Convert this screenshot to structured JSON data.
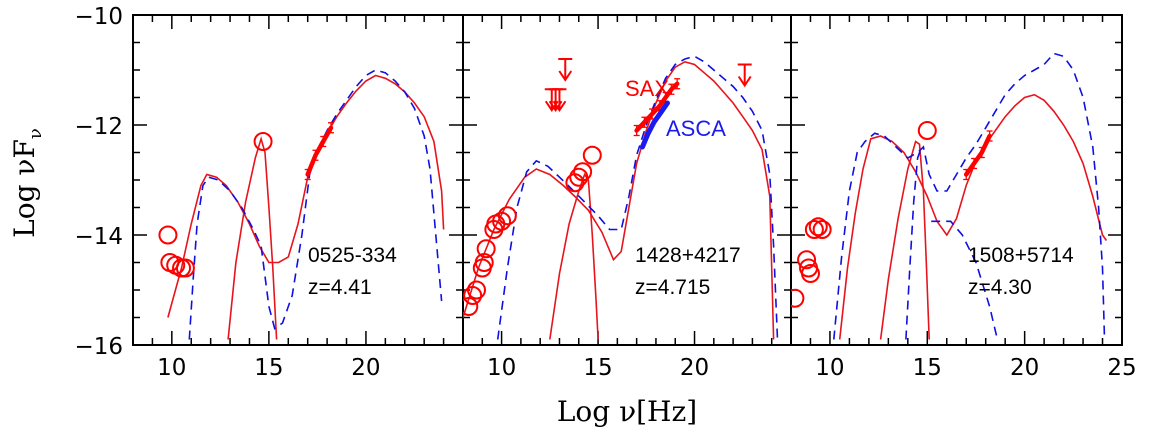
{
  "chart_data": {
    "type": "line",
    "xlabel": "Log ν[Hz]",
    "ylabel": "Log νF",
    "ylabel_sub": "ν",
    "ylim": [
      -16,
      -10
    ],
    "yticks": [
      "−10",
      "−12",
      "−14",
      "−16"
    ],
    "grid": false,
    "colors": {
      "model": "#e8141c",
      "data": "#ff0000",
      "dashed_model": "#1010e0",
      "asca": "#1b1bf0"
    },
    "panels": [
      {
        "xlim": [
          8,
          25
        ],
        "xticks": [
          "10",
          "15",
          "20"
        ],
        "name": "0525-334",
        "redshift": "z=4.41",
        "points": [
          [
            9.8,
            -14.0
          ],
          [
            9.9,
            -14.5
          ],
          [
            10.2,
            -14.55
          ],
          [
            10.5,
            -14.6
          ],
          [
            10.7,
            -14.6
          ],
          [
            14.7,
            -12.3
          ]
        ],
        "xray_red": [
          [
            17.0,
            -12.9
          ],
          [
            17.4,
            -12.55
          ],
          [
            17.8,
            -12.3
          ],
          [
            18.2,
            -12.05
          ]
        ],
        "model_solid": [
          [
            9.8,
            -15.5
          ],
          [
            10.5,
            -14.6
          ],
          [
            11.0,
            -13.8
          ],
          [
            11.5,
            -13.1
          ],
          [
            11.8,
            -12.9
          ],
          [
            12.3,
            -12.95
          ],
          [
            12.8,
            -13.1
          ],
          [
            13.4,
            -13.4
          ],
          [
            14.0,
            -13.8
          ],
          [
            14.5,
            -14.2
          ],
          [
            15.0,
            -14.5
          ],
          [
            15.5,
            -14.5
          ],
          [
            16.0,
            -14.4
          ],
          [
            16.5,
            -13.8
          ],
          [
            17.0,
            -12.95
          ],
          [
            17.5,
            -12.5
          ],
          [
            18.0,
            -12.15
          ],
          [
            18.5,
            -11.85
          ],
          [
            19.0,
            -11.6
          ],
          [
            19.5,
            -11.38
          ],
          [
            20.0,
            -11.2
          ],
          [
            20.5,
            -11.1
          ],
          [
            21.0,
            -11.15
          ],
          [
            21.5,
            -11.25
          ],
          [
            22.0,
            -11.4
          ],
          [
            22.5,
            -11.6
          ],
          [
            23.0,
            -11.85
          ],
          [
            23.5,
            -12.3
          ],
          [
            23.9,
            -13.2
          ],
          [
            24.0,
            -13.9
          ]
        ],
        "model_solid_sync": [
          [
            12.9,
            -15.9
          ],
          [
            13.3,
            -14.5
          ],
          [
            13.8,
            -13.4
          ],
          [
            14.3,
            -12.6
          ],
          [
            14.6,
            -12.25
          ],
          [
            14.8,
            -12.5
          ],
          [
            15.0,
            -13.5
          ],
          [
            15.2,
            -14.6
          ],
          [
            15.4,
            -15.9
          ]
        ],
        "model_dashed": [
          [
            10.9,
            -15.9
          ],
          [
            11.1,
            -14.8
          ],
          [
            11.3,
            -13.8
          ],
          [
            11.6,
            -13.1
          ],
          [
            11.9,
            -12.95
          ],
          [
            12.4,
            -13.0
          ],
          [
            13.0,
            -13.2
          ],
          [
            13.6,
            -13.5
          ],
          [
            14.2,
            -13.9
          ],
          [
            14.6,
            -14.2
          ],
          [
            15.0,
            -15.3
          ],
          [
            15.3,
            -15.7
          ],
          [
            15.7,
            -15.6
          ],
          [
            16.2,
            -15.1
          ],
          [
            16.7,
            -14.0
          ],
          [
            17.1,
            -12.9
          ],
          [
            17.5,
            -12.45
          ],
          [
            18.0,
            -12.1
          ],
          [
            18.5,
            -11.8
          ],
          [
            19.0,
            -11.55
          ],
          [
            19.5,
            -11.3
          ],
          [
            20.0,
            -11.1
          ],
          [
            20.5,
            -11.0
          ],
          [
            21.0,
            -11.05
          ],
          [
            21.5,
            -11.2
          ],
          [
            22.0,
            -11.4
          ],
          [
            22.5,
            -11.7
          ],
          [
            23.0,
            -12.2
          ],
          [
            23.3,
            -12.8
          ],
          [
            23.6,
            -14.0
          ],
          [
            23.9,
            -15.2
          ]
        ]
      },
      {
        "xlim": [
          8,
          25
        ],
        "xticks": [
          "10",
          "15",
          "20"
        ],
        "name": "1428+4217",
        "redshift": "z=4.715",
        "points": [
          [
            8.3,
            -15.3
          ],
          [
            8.5,
            -15.1
          ],
          [
            8.7,
            -15.0
          ],
          [
            9.0,
            -14.6
          ],
          [
            9.1,
            -14.5
          ],
          [
            9.2,
            -14.25
          ],
          [
            9.6,
            -13.9
          ],
          [
            9.7,
            -13.8
          ],
          [
            10.0,
            -13.75
          ],
          [
            10.3,
            -13.65
          ],
          [
            13.8,
            -13.05
          ],
          [
            14.0,
            -12.95
          ],
          [
            14.2,
            -12.85
          ],
          [
            14.7,
            -12.55
          ]
        ],
        "upper_limits": [
          [
            12.6,
            -11.35
          ],
          [
            12.8,
            -11.35
          ],
          [
            13.0,
            -11.35
          ],
          [
            13.3,
            -10.8
          ],
          [
            22.6,
            -10.9
          ]
        ],
        "xray_red": [
          [
            17.0,
            -12.1
          ],
          [
            17.4,
            -11.95
          ],
          [
            17.8,
            -11.8
          ],
          [
            18.2,
            -11.65
          ],
          [
            18.5,
            -11.5
          ],
          [
            18.8,
            -11.35
          ],
          [
            19.1,
            -11.25
          ]
        ],
        "asca": [
          [
            17.3,
            -12.4
          ],
          [
            17.6,
            -12.15
          ],
          [
            17.9,
            -11.95
          ],
          [
            18.3,
            -11.75
          ],
          [
            18.6,
            -11.6
          ]
        ],
        "label_sax": "SAX",
        "label_asca": "ASCA",
        "model_solid": [
          [
            8.0,
            -15.5
          ],
          [
            8.8,
            -14.6
          ],
          [
            9.6,
            -13.9
          ],
          [
            10.4,
            -13.35
          ],
          [
            11.2,
            -12.95
          ],
          [
            11.8,
            -12.8
          ],
          [
            12.5,
            -12.9
          ],
          [
            13.2,
            -13.1
          ],
          [
            13.8,
            -13.3
          ],
          [
            14.5,
            -13.55
          ],
          [
            15.2,
            -13.95
          ],
          [
            15.8,
            -14.45
          ],
          [
            16.2,
            -14.3
          ],
          [
            16.6,
            -13.5
          ],
          [
            17.0,
            -12.7
          ],
          [
            17.5,
            -12.1
          ],
          [
            18.0,
            -11.6
          ],
          [
            18.5,
            -11.2
          ],
          [
            19.0,
            -10.95
          ],
          [
            19.5,
            -10.85
          ],
          [
            20.0,
            -10.9
          ],
          [
            20.5,
            -11.05
          ],
          [
            21.0,
            -11.2
          ],
          [
            21.5,
            -11.4
          ],
          [
            22.0,
            -11.6
          ],
          [
            22.5,
            -11.85
          ],
          [
            23.0,
            -12.1
          ],
          [
            23.5,
            -12.45
          ],
          [
            23.9,
            -13.3
          ],
          [
            24.1,
            -15.9
          ]
        ],
        "model_solid_sync": [
          [
            12.5,
            -15.9
          ],
          [
            13.0,
            -14.7
          ],
          [
            13.5,
            -13.8
          ],
          [
            14.0,
            -13.2
          ],
          [
            14.3,
            -12.9
          ],
          [
            14.5,
            -13.0
          ],
          [
            14.7,
            -14.0
          ],
          [
            14.9,
            -15.2
          ],
          [
            15.0,
            -15.9
          ]
        ],
        "model_dashed": [
          [
            9.8,
            -15.9
          ],
          [
            10.3,
            -14.6
          ],
          [
            10.8,
            -13.5
          ],
          [
            11.3,
            -12.85
          ],
          [
            11.8,
            -12.65
          ],
          [
            12.4,
            -12.75
          ],
          [
            13.0,
            -12.95
          ],
          [
            13.6,
            -13.15
          ],
          [
            14.3,
            -13.4
          ],
          [
            15.0,
            -13.65
          ],
          [
            15.6,
            -13.9
          ],
          [
            16.2,
            -13.9
          ],
          [
            16.6,
            -13.3
          ],
          [
            17.0,
            -12.55
          ],
          [
            17.5,
            -12.0
          ],
          [
            18.0,
            -11.55
          ],
          [
            18.5,
            -11.15
          ],
          [
            19.0,
            -10.9
          ],
          [
            19.5,
            -10.8
          ],
          [
            20.0,
            -10.75
          ],
          [
            20.5,
            -10.85
          ],
          [
            21.0,
            -11.0
          ],
          [
            21.5,
            -11.15
          ],
          [
            22.0,
            -11.3
          ],
          [
            22.5,
            -11.5
          ],
          [
            23.0,
            -11.75
          ],
          [
            23.5,
            -12.1
          ],
          [
            23.9,
            -12.9
          ],
          [
            24.1,
            -14.2
          ],
          [
            24.3,
            -15.9
          ]
        ]
      },
      {
        "xlim": [
          8,
          25
        ],
        "xticks": [
          "10",
          "15",
          "20",
          "25"
        ],
        "name": "1508+5714",
        "redshift": "z=4.30",
        "points": [
          [
            8.2,
            -15.15
          ],
          [
            8.8,
            -14.45
          ],
          [
            8.9,
            -14.6
          ],
          [
            9.0,
            -14.7
          ],
          [
            9.2,
            -13.9
          ],
          [
            9.4,
            -13.85
          ],
          [
            9.6,
            -13.9
          ],
          [
            15.0,
            -12.1
          ]
        ],
        "xray_red": [
          [
            17.0,
            -12.9
          ],
          [
            17.4,
            -12.7
          ],
          [
            17.8,
            -12.5
          ],
          [
            18.2,
            -12.2
          ]
        ],
        "model_solid": [
          [
            10.5,
            -15.9
          ],
          [
            10.9,
            -14.6
          ],
          [
            11.3,
            -13.6
          ],
          [
            11.7,
            -12.8
          ],
          [
            12.1,
            -12.25
          ],
          [
            12.6,
            -12.2
          ],
          [
            13.2,
            -12.3
          ],
          [
            13.8,
            -12.5
          ],
          [
            14.4,
            -12.85
          ],
          [
            15.0,
            -13.3
          ],
          [
            15.5,
            -13.75
          ],
          [
            16.0,
            -14.0
          ],
          [
            16.5,
            -13.7
          ],
          [
            17.0,
            -13.1
          ],
          [
            17.5,
            -12.65
          ],
          [
            18.0,
            -12.35
          ],
          [
            18.5,
            -12.1
          ],
          [
            19.0,
            -11.85
          ],
          [
            19.5,
            -11.65
          ],
          [
            20.0,
            -11.5
          ],
          [
            20.5,
            -11.45
          ],
          [
            21.0,
            -11.55
          ],
          [
            21.5,
            -11.75
          ],
          [
            22.0,
            -12.0
          ],
          [
            22.5,
            -12.3
          ],
          [
            23.0,
            -12.7
          ],
          [
            23.5,
            -13.3
          ],
          [
            24.0,
            -14.0
          ],
          [
            24.2,
            -14.1
          ]
        ],
        "model_solid_sync": [
          [
            12.6,
            -15.9
          ],
          [
            13.0,
            -14.8
          ],
          [
            13.5,
            -13.7
          ],
          [
            14.0,
            -12.8
          ],
          [
            14.4,
            -12.3
          ],
          [
            14.6,
            -12.35
          ],
          [
            14.8,
            -13.2
          ],
          [
            14.95,
            -14.5
          ],
          [
            15.1,
            -15.9
          ]
        ],
        "model_dashed": [
          [
            10.2,
            -15.9
          ],
          [
            10.6,
            -14.4
          ],
          [
            11.0,
            -13.2
          ],
          [
            11.4,
            -12.5
          ],
          [
            11.8,
            -12.3
          ],
          [
            12.3,
            -12.15
          ],
          [
            12.8,
            -12.2
          ],
          [
            13.4,
            -12.4
          ],
          [
            14.0,
            -12.6
          ],
          [
            14.5,
            -12.5
          ],
          [
            14.8,
            -12.4
          ],
          [
            15.1,
            -12.9
          ],
          [
            15.5,
            -13.2
          ],
          [
            16.0,
            -13.2
          ],
          [
            16.5,
            -12.9
          ],
          [
            17.0,
            -12.6
          ],
          [
            17.5,
            -12.35
          ],
          [
            18.0,
            -12.05
          ],
          [
            18.5,
            -11.75
          ],
          [
            19.0,
            -11.45
          ],
          [
            19.5,
            -11.25
          ],
          [
            20.0,
            -11.1
          ],
          [
            20.5,
            -11.0
          ],
          [
            21.0,
            -10.9
          ],
          [
            21.5,
            -10.7
          ],
          [
            22.0,
            -10.75
          ],
          [
            22.5,
            -11.0
          ],
          [
            23.0,
            -11.5
          ],
          [
            23.5,
            -12.4
          ],
          [
            23.8,
            -13.5
          ],
          [
            24.0,
            -14.6
          ],
          [
            24.1,
            -15.9
          ]
        ],
        "model_dashed_extra": [
          [
            13.9,
            -15.9
          ],
          [
            14.1,
            -14.6
          ],
          [
            14.3,
            -13.4
          ],
          [
            14.5,
            -12.6
          ],
          [
            14.7,
            -12.4
          ]
        ],
        "model_dashed_tail": [
          [
            15.2,
            -13.75
          ],
          [
            16.2,
            -13.75
          ],
          [
            16.8,
            -14.0
          ],
          [
            17.5,
            -14.5
          ],
          [
            18.2,
            -15.3
          ],
          [
            18.6,
            -15.9
          ]
        ]
      }
    ]
  }
}
